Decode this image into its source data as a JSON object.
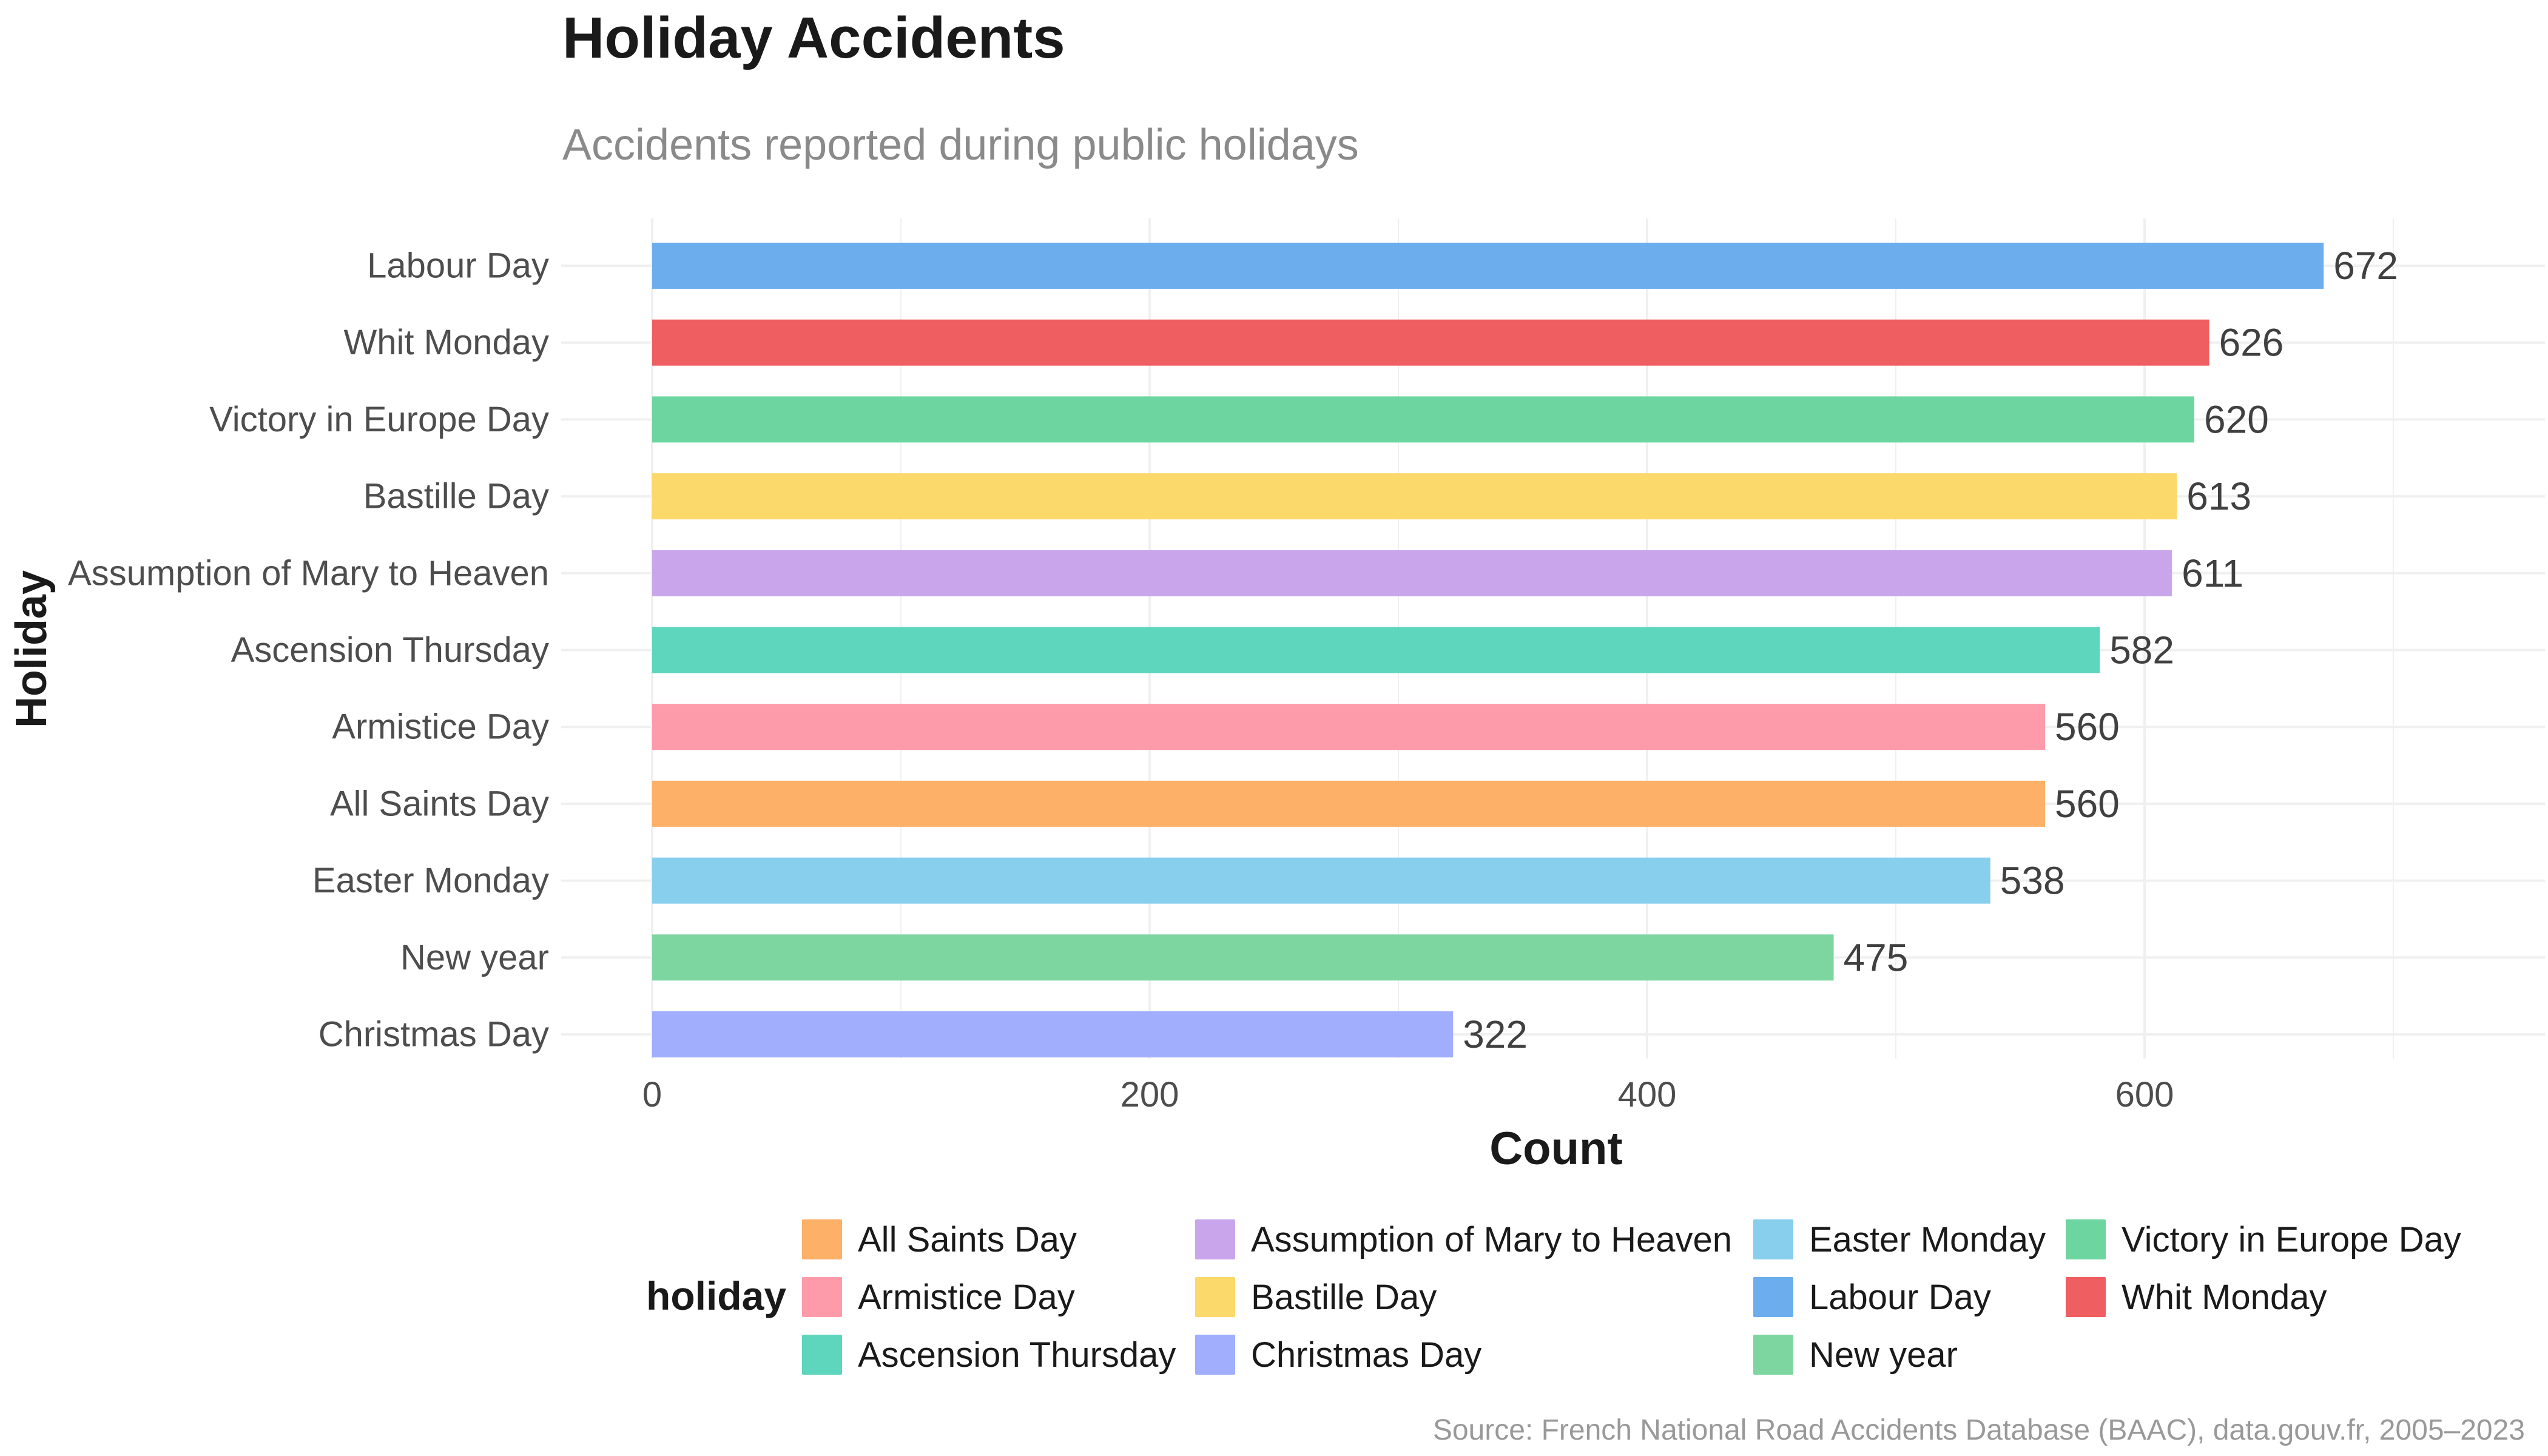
{
  "header": {
    "title": "Holiday Accidents",
    "subtitle": "Accidents reported during public holidays"
  },
  "chart_data": {
    "type": "bar",
    "orientation": "horizontal",
    "title": "Holiday Accidents",
    "subtitle": "Accidents reported during public holidays",
    "xlabel": "Count",
    "ylabel": "Holiday",
    "xlim": [
      0,
      760
    ],
    "x_ticks": [
      0,
      200,
      400,
      600
    ],
    "grid": true,
    "categories": [
      "Labour Day",
      "Whit Monday",
      "Victory in Europe Day",
      "Bastille Day",
      "Assumption of Mary to Heaven",
      "Ascension Thursday",
      "Armistice Day",
      "All Saints Day",
      "Easter Monday",
      "New year",
      "Christmas Day"
    ],
    "values": [
      672,
      626,
      620,
      613,
      611,
      582,
      560,
      560,
      538,
      475,
      322
    ],
    "colors": [
      "#6CAEED",
      "#EF5E61",
      "#6DD6A0",
      "#FCD96B",
      "#C9A6EB",
      "#5DD6BD",
      "#FD9BAA",
      "#FDB068",
      "#88CFEE",
      "#7DD6A0",
      "#A0AEFD"
    ],
    "legend": {
      "title": "holiday",
      "position": "bottom",
      "items": [
        {
          "label": "All Saints Day",
          "color": "#FDB068"
        },
        {
          "label": "Armistice Day",
          "color": "#FD9BAA"
        },
        {
          "label": "Ascension Thursday",
          "color": "#5DD6BD"
        },
        {
          "label": "Assumption of Mary to Heaven",
          "color": "#C9A6EB"
        },
        {
          "label": "Bastille Day",
          "color": "#FCD96B"
        },
        {
          "label": "Christmas Day",
          "color": "#A0AEFD"
        },
        {
          "label": "Easter Monday",
          "color": "#88CFEE"
        },
        {
          "label": "Labour Day",
          "color": "#6CAEED"
        },
        {
          "label": "New year",
          "color": "#7DD6A0"
        },
        {
          "label": "Victory in Europe Day",
          "color": "#6DD6A0"
        },
        {
          "label": "Whit Monday",
          "color": "#EF5E61"
        }
      ]
    }
  },
  "footer": {
    "source": "Source: French National Road Accidents Database (BAAC), data.gouv.fr, 2005–2023"
  }
}
